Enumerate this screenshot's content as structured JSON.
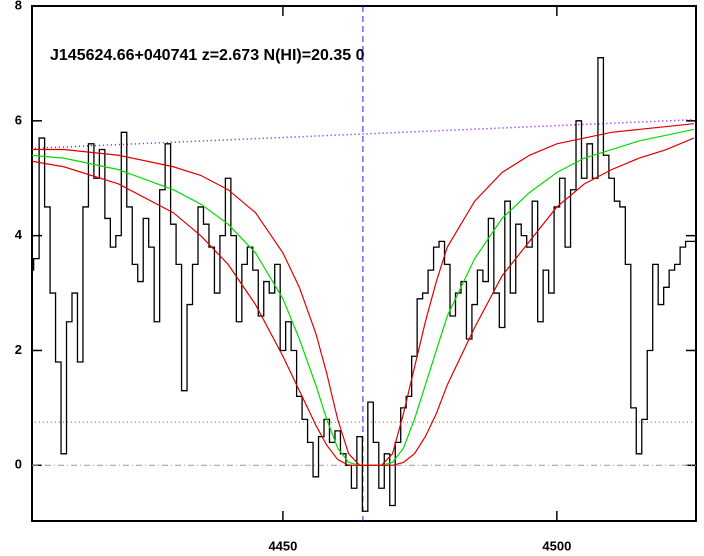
{
  "chart_data": {
    "type": "step",
    "title": "J145624.66+040741 z=2.673 N(HI)=20.35 0",
    "xlim": [
      4404.2,
      4525.4
    ],
    "ylim": [
      -0.97,
      8
    ],
    "xticks": [
      4450,
      4500
    ],
    "yticks": [
      0,
      2,
      4,
      6,
      8
    ],
    "vline": 4464.6,
    "hline": 0,
    "x": [
      4404,
      4405,
      4406,
      4407,
      4408,
      4409,
      4410,
      4411,
      4412,
      4413,
      4414,
      4415,
      4416,
      4417,
      4418,
      4419,
      4420,
      4421,
      4422,
      4423,
      4424,
      4425,
      4426,
      4427,
      4428,
      4429,
      4430,
      4431,
      4432,
      4433,
      4434,
      4435,
      4436,
      4437,
      4438,
      4439,
      4440,
      4441,
      4442,
      4443,
      4444,
      4445,
      4446,
      4447,
      4448,
      4449,
      4450,
      4451,
      4452,
      4453,
      4454,
      4455,
      4456,
      4457,
      4458,
      4459,
      4460,
      4461,
      4462,
      4463,
      4464,
      4465,
      4466,
      4467,
      4468,
      4469,
      4470,
      4471,
      4472,
      4473,
      4474,
      4475,
      4476,
      4477,
      4478,
      4479,
      4480,
      4481,
      4482,
      4483,
      4484,
      4485,
      4486,
      4487,
      4488,
      4489,
      4490,
      4491,
      4492,
      4493,
      4494,
      4495,
      4496,
      4497,
      4498,
      4499,
      4500,
      4501,
      4502,
      4503,
      4504,
      4505,
      4506,
      4507,
      4508,
      4509,
      4510,
      4511,
      4512,
      4513,
      4514,
      4515,
      4516,
      4517,
      4518,
      4519,
      4520,
      4521,
      4522,
      4523,
      4524,
      4525
    ],
    "series": [
      {
        "name": "flux",
        "color": "#000000",
        "values": [
          3.4,
          3.6,
          5.7,
          4.5,
          3.0,
          1.8,
          0.2,
          2.5,
          3.0,
          1.8,
          4.5,
          5.6,
          5.0,
          5.5,
          4.3,
          3.8,
          4.0,
          5.8,
          4.5,
          3.5,
          3.2,
          4.3,
          3.8,
          2.5,
          4.8,
          5.6,
          4.2,
          3.5,
          1.3,
          2.8,
          3.5,
          4.5,
          4.2,
          3.8,
          3.0,
          4.0,
          5.0,
          4.0,
          2.5,
          3.5,
          3.8,
          3.4,
          2.6,
          3.2,
          3.0,
          3.5,
          2.0,
          2.5,
          2.0,
          1.2,
          0.8,
          0.4,
          -0.2,
          0.5,
          0.8,
          0.4,
          0.6,
          0.2,
          0.0,
          -0.4,
          0.5,
          -0.8,
          1.1,
          0.4,
          -0.4,
          0.2,
          -0.7,
          0.4,
          1.0,
          1.2,
          1.9,
          2.9,
          3.0,
          3.4,
          3.8,
          3.9,
          3.5,
          2.6,
          3.0,
          3.2,
          2.2,
          2.8,
          3.4,
          3.2,
          4.3,
          3.0,
          2.4,
          4.6,
          3.0,
          4.2,
          4.0,
          3.8,
          4.6,
          2.5,
          3.4,
          3.0,
          4.5,
          5.0,
          3.8,
          4.8,
          6.0,
          5.0,
          5.6,
          5.0,
          7.1,
          5.4,
          5.0,
          4.6,
          4.5,
          3.5,
          1.0,
          0.2,
          0.8,
          2.0,
          3.5,
          2.8,
          3.1,
          3.4,
          3.5,
          3.8,
          3.9,
          3.9
        ]
      }
    ],
    "fits": {
      "x": [
        4404,
        4410,
        4420,
        4430,
        4435,
        4440,
        4445,
        4450,
        4453,
        4456,
        4458,
        4460,
        4462,
        4464,
        4468,
        4470,
        4472,
        4474,
        4476,
        4478,
        4480,
        4485,
        4490,
        4495,
        4500,
        4505,
        4510,
        4515,
        4520,
        4525
      ],
      "series": [
        {
          "color": "#00dd00",
          "values": [
            5.4,
            5.35,
            5.15,
            4.8,
            4.55,
            4.2,
            3.7,
            2.9,
            2.2,
            1.4,
            0.8,
            0.3,
            0.05,
            0,
            0,
            0.05,
            0.3,
            0.8,
            1.4,
            2.0,
            2.6,
            3.6,
            4.3,
            4.75,
            5.1,
            5.35,
            5.5,
            5.65,
            5.75,
            5.85
          ]
        },
        {
          "color": "#dd0000",
          "values": [
            5.5,
            5.5,
            5.4,
            5.2,
            5.05,
            4.8,
            4.4,
            3.7,
            3.1,
            2.3,
            1.6,
            0.8,
            0.2,
            0,
            0,
            0.2,
            0.9,
            1.7,
            2.5,
            3.2,
            3.8,
            4.6,
            5.1,
            5.4,
            5.6,
            5.7,
            5.8,
            5.85,
            5.9,
            5.95
          ]
        },
        {
          "color": "#dd0000",
          "values": [
            5.3,
            5.2,
            4.9,
            4.4,
            4.0,
            3.5,
            2.8,
            1.9,
            1.3,
            0.7,
            0.35,
            0.1,
            0,
            0,
            0,
            0,
            0.05,
            0.2,
            0.5,
            0.9,
            1.4,
            2.4,
            3.3,
            3.9,
            4.5,
            4.9,
            5.15,
            5.35,
            5.5,
            5.7
          ]
        }
      ]
    },
    "continuum": {
      "x": [
        4404,
        4525
      ],
      "values": [
        5.52,
        6.02
      ],
      "color": "#8800ff"
    },
    "error": {
      "x": [
        4404,
        4525
      ],
      "values": [
        0.75,
        0.75
      ],
      "color": "#e08030"
    }
  }
}
